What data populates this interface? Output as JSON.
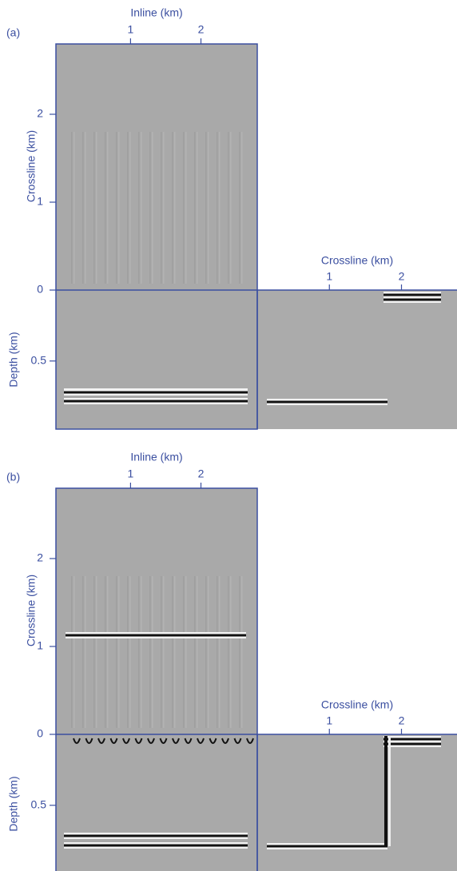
{
  "panels": [
    {
      "label": "(a)",
      "inline_label": "Inline (km)",
      "inline_lim": [
        -0.06,
        2.8
      ],
      "inline_ticks": [
        1,
        2
      ],
      "crossline_label": "Crossline (km)",
      "crossline_lim": [
        0,
        2.8
      ],
      "crossline_ticks": [
        0,
        1,
        2
      ],
      "depth_label": "Depth (km)",
      "depth_lim": [
        0,
        0.98
      ],
      "depth_ticks": [
        0.5
      ],
      "right_crossline_label": "Crossline (km)",
      "right_crossline_lim": [
        0,
        2.77
      ],
      "right_crossline_ticks": [
        1,
        2
      ]
    },
    {
      "label": "(b)",
      "inline_label": "Inline (km)",
      "inline_lim": [
        -0.06,
        2.8
      ],
      "inline_ticks": [
        1,
        2
      ],
      "crossline_label": "Crossline (km)",
      "crossline_lim": [
        0,
        2.8
      ],
      "crossline_ticks": [
        0,
        1,
        2
      ],
      "depth_label": "Depth (km)",
      "depth_lim": [
        0,
        0.98
      ],
      "depth_ticks": [
        0.5
      ],
      "right_crossline_label": "Crossline (km)",
      "right_crossline_lim": [
        0,
        2.77
      ],
      "right_crossline_ticks": [
        1,
        2
      ]
    }
  ]
}
